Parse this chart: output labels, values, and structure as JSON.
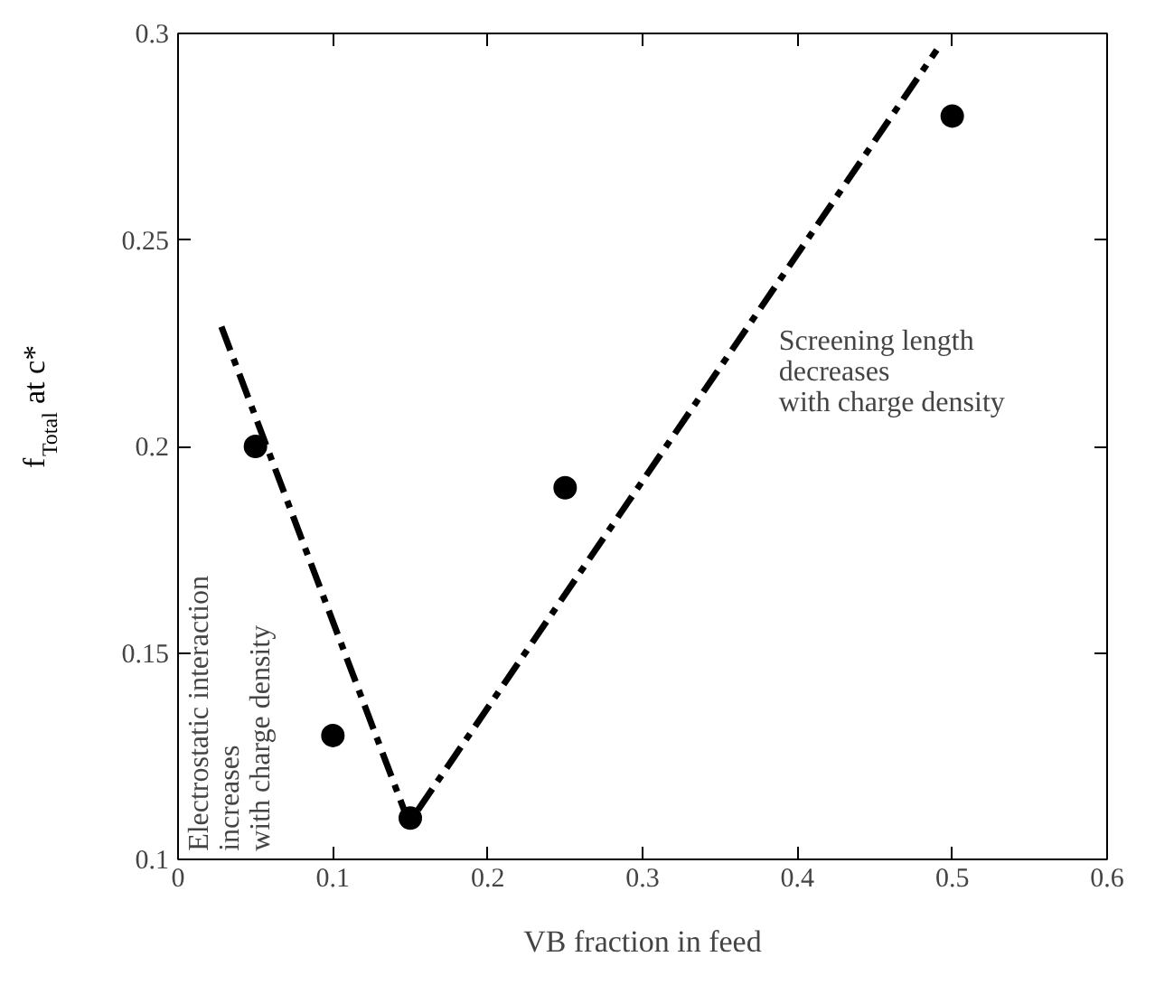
{
  "chart_data": {
    "type": "scatter",
    "xlabel": "VB fraction in feed",
    "ylabel": "f$_{Total}$ at c*",
    "xlim": [
      0,
      0.6
    ],
    "ylim": [
      0.1,
      0.3
    ],
    "xticks": [
      0,
      0.1,
      0.2,
      0.3,
      0.4,
      0.5,
      0.6
    ],
    "yticks": [
      0.1,
      0.15,
      0.2,
      0.25,
      0.3
    ],
    "grid": false,
    "marker": "circle",
    "series": [
      {
        "color": "#000000",
        "x": [
          0.05,
          0.1,
          0.15,
          0.25,
          0.5
        ],
        "values": [
          0.2,
          0.13,
          0.11,
          0.19,
          0.28
        ]
      },
      {
        "type": "line",
        "color": "#000000",
        "line_style": "dashed",
        "marker": "none",
        "x": [
          0.028,
          0.15
        ],
        "values": [
          0.229,
          0.108
        ]
      },
      {
        "type": "line",
        "color": "#000000",
        "line_style": "dashed",
        "marker": "none",
        "x": [
          0.155,
          0.49
        ],
        "values": [
          0.112,
          0.296
        ]
      }
    ],
    "annotations": [
      "Screening length\ndecreases\nwith charge density",
      "Electrostatic interaction\nincreases\nwith charge density"
    ]
  }
}
